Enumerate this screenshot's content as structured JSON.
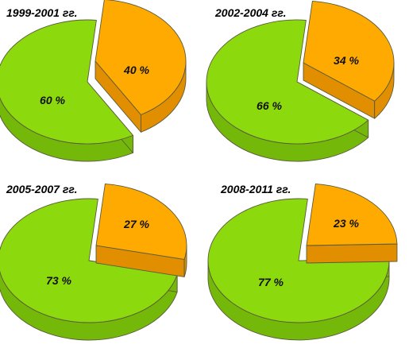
{
  "colors": {
    "green_top": "#8cd90d",
    "green_side": "#74b80a",
    "orange_top": "#ffaa00",
    "orange_side": "#e18f00",
    "edge": "#5a5a3c"
  },
  "chart_data": [
    {
      "type": "pie",
      "title": "1999-2001 гг.",
      "slices": [
        {
          "value": 60,
          "label": "60 %",
          "color": "#8cd90d"
        },
        {
          "value": 40,
          "label": "40 %",
          "color": "#ffaa00"
        }
      ]
    },
    {
      "type": "pie",
      "title": "2002-2004 гг.",
      "slices": [
        {
          "value": 66,
          "label": "66 %",
          "color": "#8cd90d"
        },
        {
          "value": 34,
          "label": "34 %",
          "color": "#ffaa00"
        }
      ]
    },
    {
      "type": "pie",
      "title": "2005-2007 гг.",
      "slices": [
        {
          "value": 73,
          "label": "73 %",
          "color": "#8cd90d"
        },
        {
          "value": 27,
          "label": "27 %",
          "color": "#ffaa00"
        }
      ]
    },
    {
      "type": "pie",
      "title": "2008-2011 гг.",
      "slices": [
        {
          "value": 77,
          "label": "77 %",
          "color": "#8cd90d"
        },
        {
          "value": 23,
          "label": "23 %",
          "color": "#ffaa00"
        }
      ]
    }
  ]
}
